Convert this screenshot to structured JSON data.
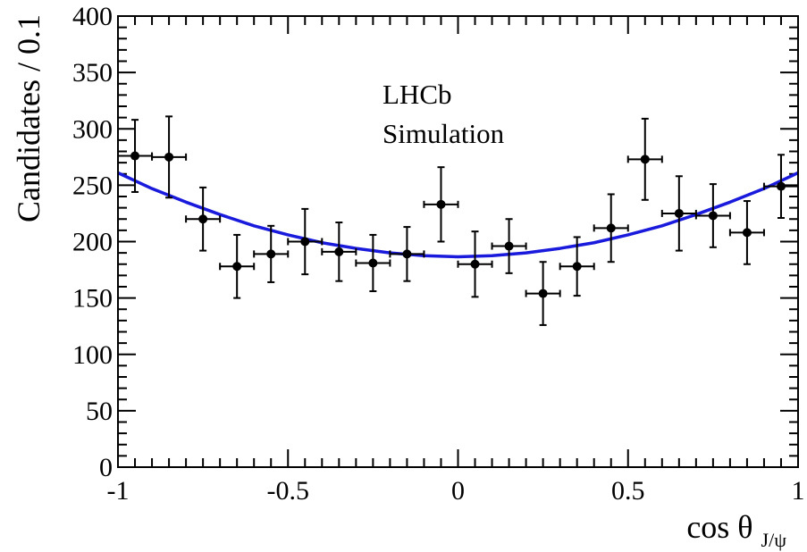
{
  "chart_data": {
    "type": "scatter",
    "xlabel": "cos θ",
    "xlabel_sub": "J/ψ",
    "ylabel": "Candidates / 0.1",
    "annotations": [
      "LHCb",
      "Simulation"
    ],
    "xlim": [
      -1,
      1
    ],
    "ylim": [
      0,
      400
    ],
    "grid": false,
    "x_ticks": [
      -1,
      -0.5,
      0,
      0.5,
      1
    ],
    "x_tick_labels": [
      "-1",
      "-0.5",
      "0",
      "0.5",
      "1"
    ],
    "y_ticks": [
      0,
      50,
      100,
      150,
      200,
      250,
      300,
      350,
      400
    ],
    "y_tick_labels": [
      "0",
      "50",
      "100",
      "150",
      "200",
      "250",
      "300",
      "350",
      "400"
    ],
    "series": [
      {
        "kind": "points",
        "x": [
          -0.95,
          -0.85,
          -0.75,
          -0.65,
          -0.55,
          -0.45,
          -0.35,
          -0.25,
          -0.15,
          -0.05,
          0.05,
          0.15,
          0.25,
          0.35,
          0.45,
          0.55,
          0.65,
          0.75,
          0.85,
          0.95
        ],
        "y": [
          276,
          275,
          220,
          178,
          189,
          200,
          191,
          181,
          189,
          233,
          180,
          196,
          154,
          178,
          212,
          273,
          225,
          223,
          208,
          249
        ],
        "yerr": [
          32,
          36,
          28,
          28,
          25,
          29,
          26,
          25,
          24,
          33,
          29,
          24,
          28,
          26,
          30,
          36,
          33,
          28,
          28,
          28
        ],
        "xerr": 0.05,
        "color": "#000000"
      },
      {
        "kind": "curve",
        "x": [
          -1,
          -0.9,
          -0.8,
          -0.7,
          -0.6,
          -0.5,
          -0.4,
          -0.3,
          -0.2,
          -0.1,
          0,
          0.1,
          0.2,
          0.3,
          0.4,
          0.5,
          0.6,
          0.7,
          0.8,
          0.9,
          1
        ],
        "y": [
          261,
          247,
          235,
          224,
          214,
          206,
          199,
          194,
          190,
          187.5,
          186.5,
          187.5,
          190,
          194,
          199,
          206,
          214,
          224,
          235,
          247,
          261
        ],
        "color": "#1a1adc"
      }
    ]
  }
}
